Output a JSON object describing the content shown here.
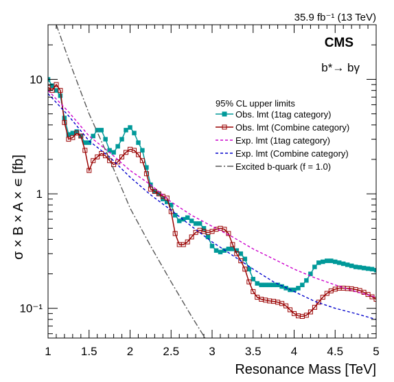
{
  "chart_data": {
    "type": "line",
    "header_right": "35.9 fb⁻¹ (13 TeV)",
    "experiment": "CMS",
    "process": "b*→ bγ",
    "legend_title": "95% CL upper limits",
    "legend_position": "top-right",
    "xlabel": "Resonance Mass [TeV]",
    "ylabel": "σ × B × A × ∊ [fb]",
    "xlim": [
      1.0,
      5.0
    ],
    "ylim": [
      0.055,
      30
    ],
    "yscale": "log",
    "grid": false,
    "x_ticks": [
      {
        "value": 1.0,
        "label": "1"
      },
      {
        "value": 1.5,
        "label": "1.5"
      },
      {
        "value": 2.0,
        "label": "2"
      },
      {
        "value": 2.5,
        "label": "2.5"
      },
      {
        "value": 3.0,
        "label": "3"
      },
      {
        "value": 3.5,
        "label": "3.5"
      },
      {
        "value": 4.0,
        "label": "4"
      },
      {
        "value": 4.5,
        "label": "4.5"
      },
      {
        "value": 5.0,
        "label": "5"
      }
    ],
    "y_ticks": [
      {
        "value": 0.1,
        "label": "10⁻¹"
      },
      {
        "value": 1,
        "label": "1"
      },
      {
        "value": 10,
        "label": "10"
      }
    ],
    "series": [
      {
        "name": "Obs. lmt (1tag category)",
        "color": "#009999",
        "style": "solid",
        "marker": "filled-square",
        "points": [
          [
            1.0,
            10.0
          ],
          [
            1.05,
            8.8
          ],
          [
            1.1,
            8.0
          ],
          [
            1.15,
            7.2
          ],
          [
            1.2,
            4.6
          ],
          [
            1.25,
            3.3
          ],
          [
            1.3,
            3.4
          ],
          [
            1.35,
            3.5
          ],
          [
            1.4,
            3.2
          ],
          [
            1.45,
            2.8
          ],
          [
            1.5,
            2.8
          ],
          [
            1.55,
            3.2
          ],
          [
            1.6,
            3.6
          ],
          [
            1.65,
            3.6
          ],
          [
            1.7,
            3.0
          ],
          [
            1.75,
            2.4
          ],
          [
            1.8,
            2.3
          ],
          [
            1.85,
            2.6
          ],
          [
            1.9,
            3.0
          ],
          [
            1.95,
            3.6
          ],
          [
            2.0,
            3.8
          ],
          [
            2.05,
            3.4
          ],
          [
            2.1,
            2.8
          ],
          [
            2.15,
            2.4
          ],
          [
            2.2,
            1.7
          ],
          [
            2.25,
            1.2
          ],
          [
            2.3,
            1.05
          ],
          [
            2.35,
            1.0
          ],
          [
            2.4,
            0.9
          ],
          [
            2.45,
            0.85
          ],
          [
            2.5,
            0.8
          ],
          [
            2.55,
            0.65
          ],
          [
            2.6,
            0.58
          ],
          [
            2.65,
            0.6
          ],
          [
            2.7,
            0.62
          ],
          [
            2.75,
            0.58
          ],
          [
            2.8,
            0.55
          ],
          [
            2.85,
            0.55
          ],
          [
            2.9,
            0.5
          ],
          [
            2.95,
            0.42
          ],
          [
            3.0,
            0.35
          ],
          [
            3.05,
            0.32
          ],
          [
            3.1,
            0.31
          ],
          [
            3.15,
            0.32
          ],
          [
            3.2,
            0.33
          ],
          [
            3.25,
            0.33
          ],
          [
            3.3,
            0.32
          ],
          [
            3.35,
            0.3
          ],
          [
            3.4,
            0.27
          ],
          [
            3.45,
            0.22
          ],
          [
            3.5,
            0.18
          ],
          [
            3.55,
            0.165
          ],
          [
            3.6,
            0.16
          ],
          [
            3.65,
            0.16
          ],
          [
            3.7,
            0.16
          ],
          [
            3.75,
            0.16
          ],
          [
            3.8,
            0.16
          ],
          [
            3.85,
            0.155
          ],
          [
            3.9,
            0.15
          ],
          [
            3.95,
            0.145
          ],
          [
            4.0,
            0.145
          ],
          [
            4.05,
            0.15
          ],
          [
            4.1,
            0.16
          ],
          [
            4.15,
            0.175
          ],
          [
            4.2,
            0.2
          ],
          [
            4.25,
            0.23
          ],
          [
            4.3,
            0.25
          ],
          [
            4.35,
            0.255
          ],
          [
            4.4,
            0.26
          ],
          [
            4.45,
            0.26
          ],
          [
            4.5,
            0.255
          ],
          [
            4.55,
            0.25
          ],
          [
            4.6,
            0.245
          ],
          [
            4.65,
            0.24
          ],
          [
            4.7,
            0.235
          ],
          [
            4.75,
            0.23
          ],
          [
            4.8,
            0.228
          ],
          [
            4.85,
            0.225
          ],
          [
            4.9,
            0.222
          ],
          [
            4.95,
            0.22
          ],
          [
            5.0,
            0.215
          ]
        ]
      },
      {
        "name": "Obs. lmt (Combine category)",
        "color": "#990000",
        "style": "solid",
        "marker": "open-square",
        "points": [
          [
            1.0,
            8.5
          ],
          [
            1.05,
            8.0
          ],
          [
            1.1,
            9.0
          ],
          [
            1.15,
            8.0
          ],
          [
            1.2,
            4.2
          ],
          [
            1.25,
            3.0
          ],
          [
            1.3,
            3.1
          ],
          [
            1.35,
            3.4
          ],
          [
            1.4,
            3.2
          ],
          [
            1.45,
            2.4
          ],
          [
            1.5,
            1.6
          ],
          [
            1.55,
            1.95
          ],
          [
            1.6,
            2.1
          ],
          [
            1.65,
            2.25
          ],
          [
            1.7,
            2.15
          ],
          [
            1.75,
            1.95
          ],
          [
            1.8,
            1.8
          ],
          [
            1.85,
            1.9
          ],
          [
            1.9,
            2.1
          ],
          [
            1.95,
            2.3
          ],
          [
            2.0,
            2.45
          ],
          [
            2.05,
            2.4
          ],
          [
            2.1,
            2.2
          ],
          [
            2.15,
            1.95
          ],
          [
            2.2,
            1.5
          ],
          [
            2.25,
            1.1
          ],
          [
            2.3,
            1.05
          ],
          [
            2.35,
            1.0
          ],
          [
            2.4,
            0.95
          ],
          [
            2.45,
            0.92
          ],
          [
            2.5,
            0.7
          ],
          [
            2.55,
            0.45
          ],
          [
            2.6,
            0.36
          ],
          [
            2.65,
            0.36
          ],
          [
            2.7,
            0.38
          ],
          [
            2.75,
            0.42
          ],
          [
            2.8,
            0.46
          ],
          [
            2.85,
            0.48
          ],
          [
            2.9,
            0.47
          ],
          [
            2.95,
            0.46
          ],
          [
            3.0,
            0.47
          ],
          [
            3.05,
            0.49
          ],
          [
            3.1,
            0.5
          ],
          [
            3.15,
            0.49
          ],
          [
            3.2,
            0.45
          ],
          [
            3.25,
            0.36
          ],
          [
            3.3,
            0.3
          ],
          [
            3.35,
            0.26
          ],
          [
            3.4,
            0.22
          ],
          [
            3.45,
            0.17
          ],
          [
            3.5,
            0.14
          ],
          [
            3.55,
            0.125
          ],
          [
            3.6,
            0.12
          ],
          [
            3.65,
            0.118
          ],
          [
            3.7,
            0.116
          ],
          [
            3.75,
            0.115
          ],
          [
            3.8,
            0.113
          ],
          [
            3.85,
            0.11
          ],
          [
            3.9,
            0.105
          ],
          [
            3.95,
            0.097
          ],
          [
            4.0,
            0.09
          ],
          [
            4.05,
            0.086
          ],
          [
            4.1,
            0.085
          ],
          [
            4.15,
            0.087
          ],
          [
            4.2,
            0.093
          ],
          [
            4.25,
            0.102
          ],
          [
            4.3,
            0.113
          ],
          [
            4.35,
            0.125
          ],
          [
            4.4,
            0.135
          ],
          [
            4.45,
            0.142
          ],
          [
            4.5,
            0.147
          ],
          [
            4.55,
            0.15
          ],
          [
            4.6,
            0.15
          ],
          [
            4.65,
            0.149
          ],
          [
            4.7,
            0.148
          ],
          [
            4.75,
            0.146
          ],
          [
            4.8,
            0.143
          ],
          [
            4.85,
            0.138
          ],
          [
            4.9,
            0.132
          ],
          [
            4.95,
            0.126
          ],
          [
            5.0,
            0.12
          ]
        ]
      },
      {
        "name": "Exp. lmt (1tag category)",
        "color": "#cc00cc",
        "style": "dashed",
        "marker": "none",
        "points": [
          [
            1.0,
            8.0
          ],
          [
            1.25,
            5.2
          ],
          [
            1.5,
            3.2
          ],
          [
            1.75,
            2.3
          ],
          [
            2.0,
            1.6
          ],
          [
            2.25,
            1.2
          ],
          [
            2.5,
            0.85
          ],
          [
            2.75,
            0.65
          ],
          [
            3.0,
            0.52
          ],
          [
            3.25,
            0.42
          ],
          [
            3.5,
            0.33
          ],
          [
            3.75,
            0.27
          ],
          [
            4.0,
            0.22
          ],
          [
            4.25,
            0.185
          ],
          [
            4.5,
            0.16
          ],
          [
            4.75,
            0.14
          ],
          [
            5.0,
            0.125
          ]
        ]
      },
      {
        "name": "Exp. lmt (Combine category)",
        "color": "#0000cc",
        "style": "dashed",
        "marker": "none",
        "points": [
          [
            1.0,
            7.5
          ],
          [
            1.25,
            4.8
          ],
          [
            1.5,
            2.9
          ],
          [
            1.75,
            2.1
          ],
          [
            2.0,
            1.4
          ],
          [
            2.25,
            0.98
          ],
          [
            2.5,
            0.72
          ],
          [
            2.75,
            0.52
          ],
          [
            3.0,
            0.38
          ],
          [
            3.25,
            0.29
          ],
          [
            3.5,
            0.22
          ],
          [
            3.75,
            0.17
          ],
          [
            4.0,
            0.14
          ],
          [
            4.25,
            0.115
          ],
          [
            4.5,
            0.1
          ],
          [
            4.75,
            0.09
          ],
          [
            5.0,
            0.08
          ]
        ]
      },
      {
        "name": "Excited b-quark (f = 1.0)",
        "color": "#555555",
        "style": "dash-dot",
        "marker": "none",
        "points": [
          [
            1.1,
            30.0
          ],
          [
            1.25,
            15.0
          ],
          [
            1.5,
            5.0
          ],
          [
            1.75,
            2.0
          ],
          [
            2.0,
            0.75
          ],
          [
            2.25,
            0.35
          ],
          [
            2.5,
            0.17
          ],
          [
            2.75,
            0.085
          ],
          [
            2.95,
            0.05
          ]
        ]
      }
    ]
  }
}
